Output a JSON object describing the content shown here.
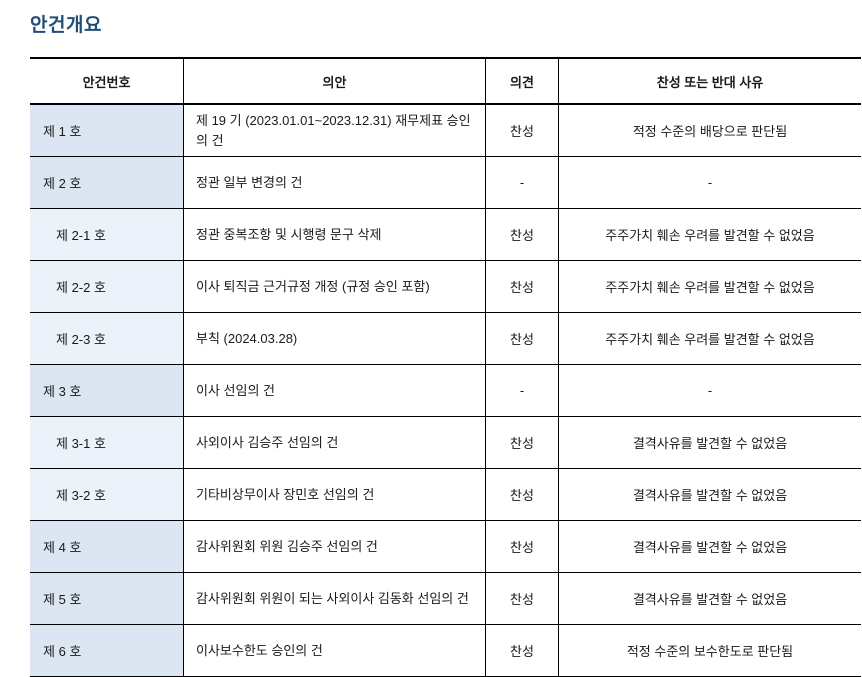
{
  "page": {
    "title": "안건개요"
  },
  "colors": {
    "title": "#1f4e79",
    "main_row_bg": "#dce6f2",
    "sub_row_bg": "#ecf2f9",
    "border": "#000000",
    "text": "#1a1a1a"
  },
  "table": {
    "columns": [
      "안건번호",
      "의안",
      "의견",
      "찬성 또는 반대 사유"
    ],
    "rows": [
      {
        "no": "제 1 호",
        "bill": "제 19 기 (2023.01.01~2023.12.31) 재무제표 승인의 건",
        "opinion": "찬성",
        "reason": "적정 수준의 배당으로 판단됨",
        "level": "main"
      },
      {
        "no": "제 2 호",
        "bill": "정관 일부 변경의 건",
        "opinion": "-",
        "reason": "-",
        "level": "main"
      },
      {
        "no": "제 2-1 호",
        "bill": "정관 중복조항 및 시행령 문구 삭제",
        "opinion": "찬성",
        "reason": "주주가치 훼손 우려를 발견할 수 없었음",
        "level": "sub"
      },
      {
        "no": "제 2-2 호",
        "bill": "이사 퇴직금 근거규정 개정 (규정 승인 포함)",
        "opinion": "찬성",
        "reason": "주주가치 훼손 우려를 발견할 수 없었음",
        "level": "sub"
      },
      {
        "no": "제 2-3 호",
        "bill": "부칙 (2024.03.28)",
        "opinion": "찬성",
        "reason": "주주가치 훼손 우려를 발견할 수 없었음",
        "level": "sub"
      },
      {
        "no": "제 3 호",
        "bill": "이사 선임의 건",
        "opinion": "-",
        "reason": "-",
        "level": "main"
      },
      {
        "no": "제 3-1 호",
        "bill": "사외이사 김승주 선임의 건",
        "opinion": "찬성",
        "reason": "결격사유를 발견할 수 없었음",
        "level": "sub"
      },
      {
        "no": "제 3-2 호",
        "bill": "기타비상무이사 장민호 선임의 건",
        "opinion": "찬성",
        "reason": "결격사유를 발견할 수 없었음",
        "level": "sub"
      },
      {
        "no": "제 4 호",
        "bill": "감사위원회 위원 김승주 선임의 건",
        "opinion": "찬성",
        "reason": "결격사유를 발견할 수 없었음",
        "level": "main"
      },
      {
        "no": "제 5 호",
        "bill": "감사위원회 위원이 되는 사외이사 김동화 선임의 건",
        "opinion": "찬성",
        "reason": "결격사유를 발견할 수 없었음",
        "level": "main"
      },
      {
        "no": "제 6 호",
        "bill": "이사보수한도 승인의 건",
        "opinion": "찬성",
        "reason": "적정 수준의 보수한도로 판단됨",
        "level": "main"
      }
    ]
  }
}
